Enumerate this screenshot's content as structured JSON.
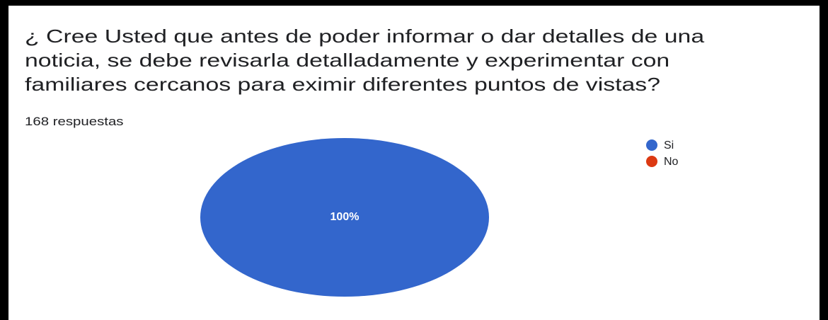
{
  "chart_data": {
    "type": "pie",
    "title": "¿ Cree Usted que antes de poder informar o dar detalles de una noticia, se debe revisarla detalladamente y experimentar con familiares cercanos para eximir diferentes puntos de vistas?",
    "subtitle": "168 respuestas",
    "categories": [
      "Si",
      "No"
    ],
    "values": [
      100,
      0
    ],
    "value_labels": [
      "100%",
      null
    ],
    "colors": [
      "#3366cc",
      "#dc3912"
    ]
  }
}
